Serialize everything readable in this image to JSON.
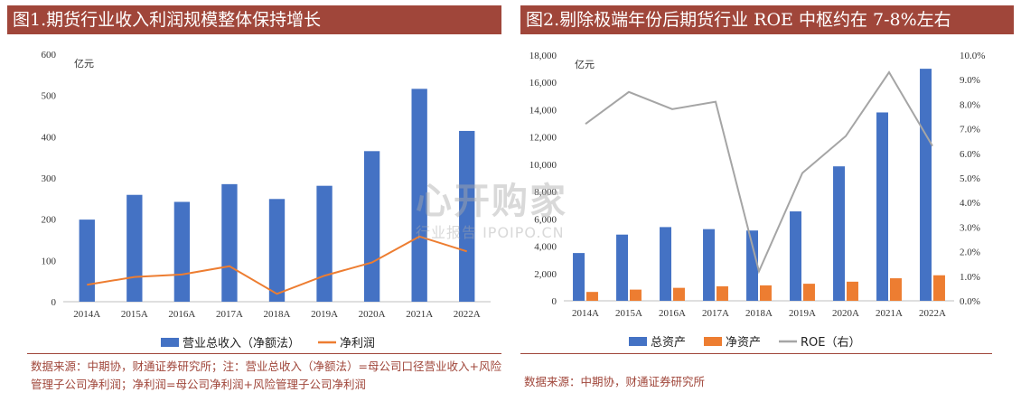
{
  "panel1": {
    "title": "图1.期货行业收入利润规模整体保持增长",
    "source_note": "数据来源：中期协，财通证券研究所；注：营业总收入（净额法）=母公司口径营业收入+风险管理子公司净利润；净利润=母公司净利润+风险管理子公司净利润"
  },
  "panel2": {
    "title": "图2.剔除极端年份后期货行业 ROE 中枢约在 7-8%左右",
    "source_note": "数据来源：中期协，财通证券研究所"
  },
  "watermark": {
    "main": "心开购家",
    "sub": "行业报告 IPOIPO.CN"
  },
  "colors": {
    "accent": "#a0463a",
    "blue": "#4472c4",
    "orange": "#ed7d31",
    "gray": "#a5a5a5"
  },
  "chart_data": [
    {
      "type": "bar",
      "categories": [
        "2014A",
        "2015A",
        "2016A",
        "2017A",
        "2018A",
        "2019A",
        "2020A",
        "2021A",
        "2022A"
      ],
      "unit": "亿元",
      "ylim": [
        0,
        600
      ],
      "yticks": [
        0,
        100,
        200,
        300,
        400,
        500,
        600
      ],
      "series": [
        {
          "name": "营业总收入（净额法）",
          "kind": "bar",
          "color": "#4472c4",
          "values": [
            199,
            259,
            242,
            285,
            249,
            281,
            365,
            516,
            414
          ]
        },
        {
          "name": "净利润",
          "kind": "line",
          "color": "#ed7d31",
          "values": [
            41,
            60,
            66,
            86,
            19,
            63,
            95,
            158,
            122
          ]
        }
      ],
      "legend_position": "bottom"
    },
    {
      "type": "bar",
      "categories": [
        "2014A",
        "2015A",
        "2016A",
        "2017A",
        "2018A",
        "2019A",
        "2020A",
        "2021A",
        "2022A"
      ],
      "unit": "亿元",
      "ylim": [
        0,
        18000
      ],
      "yticks": [
        "0",
        "2,000",
        "4,000",
        "6,000",
        "8,000",
        "10,000",
        "12,000",
        "14,000",
        "16,000",
        "18,000"
      ],
      "y2lim": [
        0,
        10
      ],
      "y2ticks": [
        "0.0%",
        "1.0%",
        "2.0%",
        "3.0%",
        "4.0%",
        "5.0%",
        "6.0%",
        "7.0%",
        "8.0%",
        "9.0%",
        "10.0%"
      ],
      "series": [
        {
          "name": "总资产",
          "kind": "bar",
          "color": "#4472c4",
          "values": [
            3500,
            4850,
            5400,
            5250,
            5150,
            6550,
            9850,
            13800,
            17000
          ]
        },
        {
          "name": "净资产",
          "kind": "bar",
          "color": "#ed7d31",
          "values": [
            650,
            820,
            950,
            1060,
            1130,
            1250,
            1400,
            1650,
            1870
          ]
        },
        {
          "name": "ROE（右）",
          "kind": "line",
          "axis": "right",
          "color": "#a5a5a5",
          "values": [
            7.2,
            8.5,
            7.8,
            8.1,
            1.2,
            5.2,
            6.7,
            9.3,
            6.3
          ]
        }
      ],
      "legend_position": "bottom"
    }
  ]
}
